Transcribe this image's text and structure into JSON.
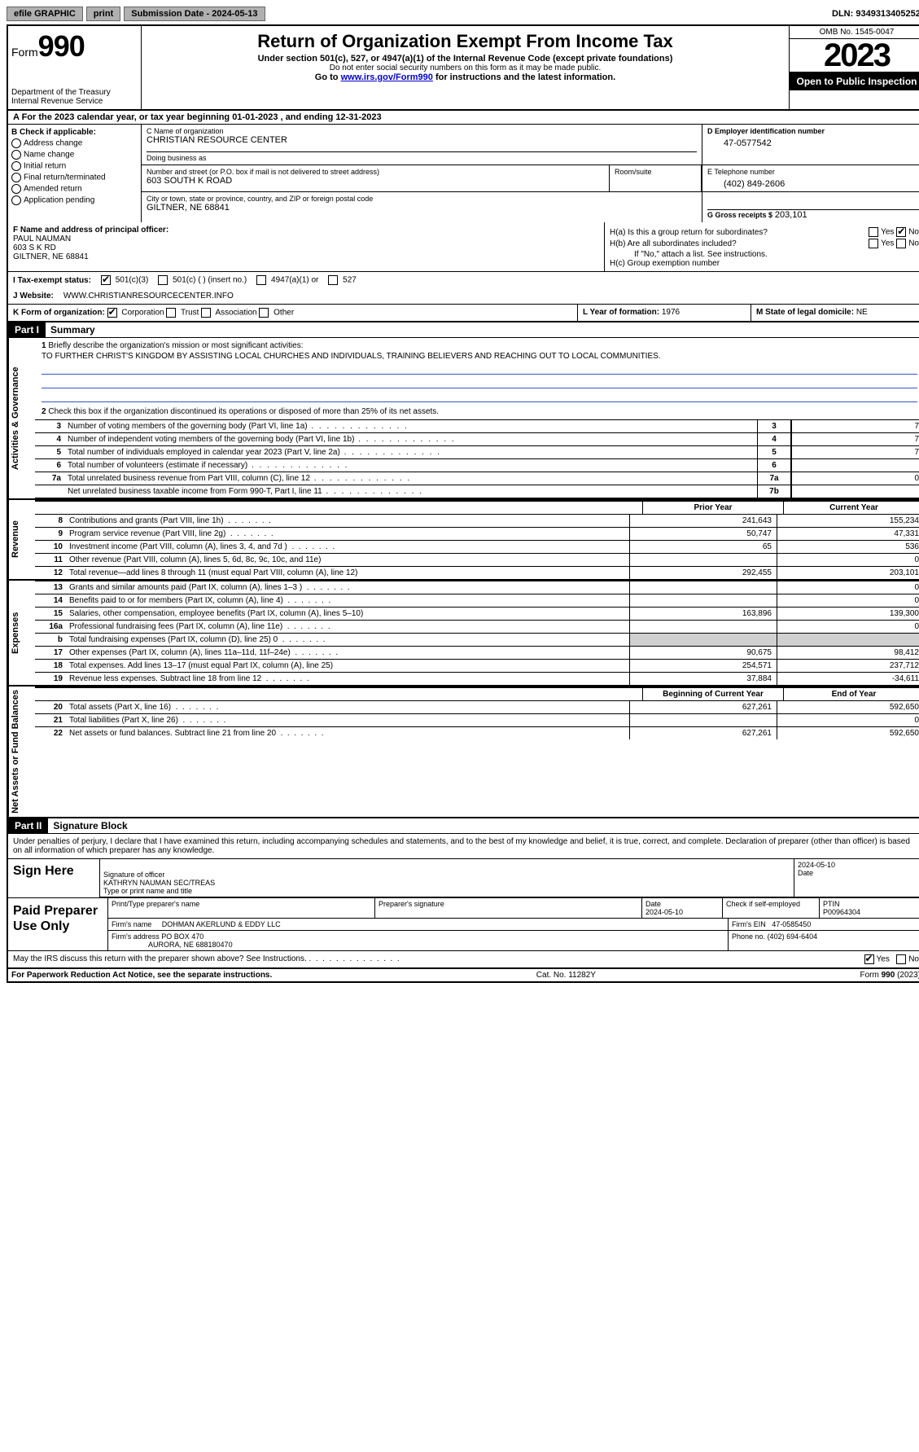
{
  "topbar": {
    "efile": "efile GRAPHIC",
    "print": "print",
    "submission": "Submission Date - 2024-05-13",
    "dln": "DLN: 93493134052524"
  },
  "header": {
    "form_label": "Form",
    "form_number": "990",
    "dept": "Department of the Treasury",
    "irs": "Internal Revenue Service",
    "title": "Return of Organization Exempt From Income Tax",
    "subtitle": "Under section 501(c), 527, or 4947(a)(1) of the Internal Revenue Code (except private foundations)",
    "ssn_note": "Do not enter social security numbers on this form as it may be made public.",
    "goto": "Go to",
    "goto_url": "www.irs.gov/Form990",
    "goto_suffix": "for instructions and the latest information.",
    "omb": "OMB No. 1545-0047",
    "year": "2023",
    "open": "Open to Public Inspection"
  },
  "row_a": {
    "text": "A For the 2023 calendar year, or tax year beginning 01-01-2023   , and ending 12-31-2023"
  },
  "section_b": {
    "heading": "B Check if applicable:",
    "addr_change": "Address change",
    "name_change": "Name change",
    "initial": "Initial return",
    "final": "Final return/terminated",
    "amended": "Amended return",
    "app_pending": "Application pending"
  },
  "section_c": {
    "name_lbl": "C Name of organization",
    "name": "CHRISTIAN RESOURCE CENTER",
    "dba_lbl": "Doing business as",
    "dba": "",
    "street_lbl": "Number and street (or P.O. box if mail is not delivered to street address)",
    "street": "603 SOUTH K ROAD",
    "room_lbl": "Room/suite",
    "city_lbl": "City or town, state or province, country, and ZIP or foreign postal code",
    "city": "GILTNER, NE  68841"
  },
  "section_d": {
    "ein_lbl": "D Employer identification number",
    "ein": "47-0577542",
    "phone_lbl": "E Telephone number",
    "phone": "(402) 849-2606",
    "gross_lbl": "G Gross receipts $",
    "gross": "203,101"
  },
  "section_f": {
    "lbl": "F Name and address of principal officer:",
    "name": "PAUL NAUMAN",
    "addr1": "603 S K RD",
    "addr2": "GILTNER, NE  68841"
  },
  "section_h": {
    "ha": "H(a)  Is this a group return for subordinates?",
    "hb": "H(b)  Are all subordinates included?",
    "hb_note": "If \"No,\" attach a list. See instructions.",
    "hc": "H(c)  Group exemption number",
    "yes": "Yes",
    "no": "No"
  },
  "section_i": {
    "lbl": "I  Tax-exempt status:",
    "c3": "501(c)(3)",
    "c_other": "501(c) (  ) (insert no.)",
    "a1": "4947(a)(1) or",
    "s527": "527"
  },
  "section_j": {
    "lbl": "J  Website:",
    "url": "WWW.CHRISTIANRESOURCECENTER.INFO"
  },
  "section_k": {
    "lbl": "K Form of organization:",
    "corp": "Corporation",
    "trust": "Trust",
    "assoc": "Association",
    "other": "Other",
    "year_lbl": "L Year of formation:",
    "year": "1976",
    "state_lbl": "M State of legal domicile:",
    "state": "NE"
  },
  "part1": {
    "header": "Part I",
    "title": "Summary",
    "q1_lbl": "1",
    "q1": "Briefly describe the organization's mission or most significant activities:",
    "mission": "TO FURTHER CHRIST'S KINGDOM BY ASSISTING LOCAL CHURCHES AND INDIVIDUALS, TRAINING BELIEVERS AND REACHING OUT TO LOCAL COMMUNITIES.",
    "q2": "Check this box      if the organization discontinued its operations or disposed of more than 25% of its net assets.",
    "vtab_gov": "Activities & Governance",
    "vtab_rev": "Revenue",
    "vtab_exp": "Expenses",
    "vtab_net": "Net Assets or Fund Balances",
    "lines_gov": [
      {
        "n": "3",
        "d": "Number of voting members of the governing body (Part VI, line 1a)",
        "box": "3",
        "v": "7"
      },
      {
        "n": "4",
        "d": "Number of independent voting members of the governing body (Part VI, line 1b)",
        "box": "4",
        "v": "7"
      },
      {
        "n": "5",
        "d": "Total number of individuals employed in calendar year 2023 (Part V, line 2a)",
        "box": "5",
        "v": "7"
      },
      {
        "n": "6",
        "d": "Total number of volunteers (estimate if necessary)",
        "box": "6",
        "v": ""
      },
      {
        "n": "7a",
        "d": "Total unrelated business revenue from Part VIII, column (C), line 12",
        "box": "7a",
        "v": "0"
      },
      {
        "n": "",
        "d": "Net unrelated business taxable income from Form 990-T, Part I, line 11",
        "box": "7b",
        "v": ""
      }
    ],
    "col_prior": "Prior Year",
    "col_current": "Current Year",
    "lines_rev": [
      {
        "n": "8",
        "d": "Contributions and grants (Part VIII, line 1h)",
        "p": "241,643",
        "c": "155,234"
      },
      {
        "n": "9",
        "d": "Program service revenue (Part VIII, line 2g)",
        "p": "50,747",
        "c": "47,331"
      },
      {
        "n": "10",
        "d": "Investment income (Part VIII, column (A), lines 3, 4, and 7d )",
        "p": "65",
        "c": "536"
      },
      {
        "n": "11",
        "d": "Other revenue (Part VIII, column (A), lines 5, 6d, 8c, 9c, 10c, and 11e)",
        "p": "",
        "c": "0"
      },
      {
        "n": "12",
        "d": "Total revenue—add lines 8 through 11 (must equal Part VIII, column (A), line 12)",
        "p": "292,455",
        "c": "203,101"
      }
    ],
    "lines_exp": [
      {
        "n": "13",
        "d": "Grants and similar amounts paid (Part IX, column (A), lines 1–3 )",
        "p": "",
        "c": "0"
      },
      {
        "n": "14",
        "d": "Benefits paid to or for members (Part IX, column (A), line 4)",
        "p": "",
        "c": "0"
      },
      {
        "n": "15",
        "d": "Salaries, other compensation, employee benefits (Part IX, column (A), lines 5–10)",
        "p": "163,896",
        "c": "139,300"
      },
      {
        "n": "16a",
        "d": "Professional fundraising fees (Part IX, column (A), line 11e)",
        "p": "",
        "c": "0"
      },
      {
        "n": "b",
        "d": "Total fundraising expenses (Part IX, column (D), line 25) 0",
        "p": "shade",
        "c": "shade"
      },
      {
        "n": "17",
        "d": "Other expenses (Part IX, column (A), lines 11a–11d, 11f–24e)",
        "p": "90,675",
        "c": "98,412"
      },
      {
        "n": "18",
        "d": "Total expenses. Add lines 13–17 (must equal Part IX, column (A), line 25)",
        "p": "254,571",
        "c": "237,712"
      },
      {
        "n": "19",
        "d": "Revenue less expenses. Subtract line 18 from line 12",
        "p": "37,884",
        "c": "-34,611"
      }
    ],
    "col_begin": "Beginning of Current Year",
    "col_end": "End of Year",
    "lines_net": [
      {
        "n": "20",
        "d": "Total assets (Part X, line 16)",
        "p": "627,261",
        "c": "592,650"
      },
      {
        "n": "21",
        "d": "Total liabilities (Part X, line 26)",
        "p": "",
        "c": "0"
      },
      {
        "n": "22",
        "d": "Net assets or fund balances. Subtract line 21 from line 20",
        "p": "627,261",
        "c": "592,650"
      }
    ]
  },
  "part2": {
    "header": "Part II",
    "title": "Signature Block",
    "decl": "Under penalties of perjury, I declare that I have examined this return, including accompanying schedules and statements, and to the best of my knowledge and belief, it is true, correct, and complete. Declaration of preparer (other than officer) is based on all information of which preparer has any knowledge.",
    "sign_here": "Sign Here",
    "sig_officer_lbl": "Signature of officer",
    "officer": "KATHRYN NAUMAN  SEC/TREAS",
    "officer_title_lbl": "Type or print name and title",
    "date_lbl": "Date",
    "date": "2024-05-10",
    "paid": "Paid Preparer Use Only",
    "prep_name_lbl": "Print/Type preparer's name",
    "prep_sig_lbl": "Preparer's signature",
    "prep_date": "2024-05-10",
    "self_emp": "Check       if self-employed",
    "ptin_lbl": "PTIN",
    "ptin": "P00964304",
    "firm_name_lbl": "Firm's name",
    "firm_name": "DOHMAN AKERLUND & EDDY LLC",
    "firm_ein_lbl": "Firm's EIN",
    "firm_ein": "47-0585450",
    "firm_addr_lbl": "Firm's address",
    "firm_addr1": "PO BOX 470",
    "firm_addr2": "AURORA, NE  688180470",
    "firm_phone_lbl": "Phone no.",
    "firm_phone": "(402) 694-6404",
    "discuss": "May the IRS discuss this return with the preparer shown above? See Instructions.",
    "yes": "Yes",
    "no": "No"
  },
  "footer": {
    "paperwork": "For Paperwork Reduction Act Notice, see the separate instructions.",
    "catno": "Cat. No. 11282Y",
    "formno": "Form 990 (2023)"
  }
}
